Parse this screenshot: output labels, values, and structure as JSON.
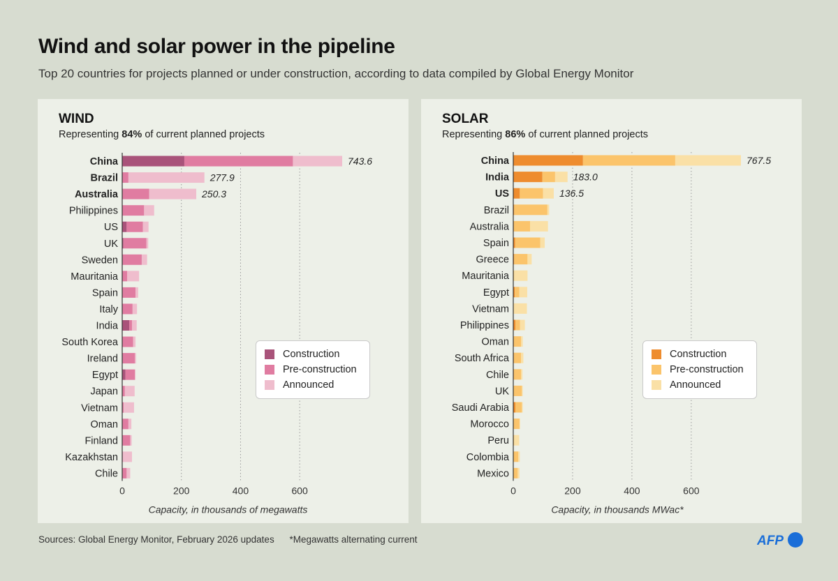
{
  "title": "Wind and solar power in the pipeline",
  "subtitle": "Top 20 countries for projects planned or under construction, according to data compiled by Global Energy Monitor",
  "footer": {
    "sources": "Sources: Global Energy Monitor, February 2026 updates",
    "note": "*Megawatts alternating current",
    "logo": "AFP"
  },
  "colors": {
    "background": "#d7dcd0",
    "panel": "#edf0e8",
    "logo_blue": "#1a6ed8"
  },
  "wind": {
    "heading": "WIND",
    "sub_prefix": "Representing ",
    "sub_bold": "84%",
    "sub_suffix": " of current planned projects",
    "legend": [
      "Construction",
      "Pre-construction",
      "Announced"
    ]
  },
  "solar": {
    "heading": "SOLAR",
    "sub_prefix": "Representing ",
    "sub_bold": "86%",
    "sub_suffix": " of current planned projects",
    "legend": [
      "Construction",
      "Pre-construction",
      "Announced"
    ]
  },
  "chart_data": [
    {
      "type": "bar",
      "orientation": "horizontal",
      "stacked": true,
      "title": "WIND",
      "xlabel": "Capacity, in thousands of megawatts",
      "xlim": [
        0,
        743.6
      ],
      "xticks": [
        0,
        200,
        400,
        600
      ],
      "grid": "vertical dotted",
      "legend_position": "right",
      "colors": [
        "#a9537a",
        "#e07ca1",
        "#efbdcd"
      ],
      "categories": [
        "China",
        "Brazil",
        "Australia",
        "Philippines",
        "US",
        "UK",
        "Sweden",
        "Mauritania",
        "Spain",
        "Italy",
        "India",
        "South Korea",
        "Ireland",
        "Egypt",
        "Japan",
        "Vietnam",
        "Oman",
        "Finland",
        "Kazakhstan",
        "Chile"
      ],
      "bold_categories": [
        "China",
        "Brazil",
        "Australia"
      ],
      "series": [
        {
          "name": "Construction",
          "values": [
            210,
            1,
            1,
            1,
            15,
            4,
            2,
            0,
            1,
            1,
            24,
            1,
            2,
            11,
            1,
            2,
            1,
            1,
            0,
            1
          ]
        },
        {
          "name": "Pre-construction",
          "values": [
            367,
            20,
            90,
            73,
            55,
            78,
            64,
            17,
            44,
            34,
            9,
            36,
            41,
            32,
            8,
            3,
            20,
            26,
            2,
            14
          ]
        },
        {
          "name": "Announced",
          "values": [
            166.6,
            256.9,
            159.3,
            34,
            19,
            6,
            18,
            40,
            9,
            15,
            16,
            8,
            4,
            2,
            33,
            35,
            10,
            5,
            31,
            12
          ]
        }
      ],
      "data_labels": {
        "China": "743.6",
        "Brazil": "277.9",
        "Australia": "250.3"
      }
    },
    {
      "type": "bar",
      "orientation": "horizontal",
      "stacked": true,
      "title": "SOLAR",
      "xlabel": "Capacity, in thousands MWac*",
      "xlim": [
        0,
        767.5
      ],
      "xticks": [
        0,
        200,
        400,
        600
      ],
      "grid": "vertical dotted",
      "legend_position": "right",
      "colors": [
        "#ee8c2e",
        "#fbc46b",
        "#fae0a6"
      ],
      "categories": [
        "China",
        "India",
        "US",
        "Brazil",
        "Australia",
        "Spain",
        "Greece",
        "Mauritania",
        "Egypt",
        "Vietnam",
        "Philippines",
        "Oman",
        "South Africa",
        "Chile",
        "UK",
        "Saudi Arabia",
        "Morocco",
        "Peru",
        "Colombia",
        "Mexico"
      ],
      "bold_categories": [
        "China",
        "India",
        "US"
      ],
      "series": [
        {
          "name": "Construction",
          "values": [
            235,
            98,
            22,
            3,
            2,
            6,
            3,
            0,
            5,
            0,
            7,
            2,
            2,
            2,
            1,
            7,
            1,
            0,
            1,
            1
          ]
        },
        {
          "name": "Pre-construction",
          "values": [
            311,
            43,
            78,
            112,
            55,
            85,
            45,
            3,
            15,
            1,
            16,
            24,
            24,
            24,
            28,
            22,
            20,
            3,
            16,
            14
          ]
        },
        {
          "name": "Announced",
          "values": [
            221.5,
            42,
            36.5,
            6,
            60,
            15,
            14,
            45,
            27,
            45,
            16,
            6,
            8,
            5,
            3,
            3,
            2,
            17,
            5,
            6
          ]
        }
      ],
      "data_labels": {
        "China": "767.5",
        "India": "183.0",
        "US": "136.5"
      }
    }
  ]
}
